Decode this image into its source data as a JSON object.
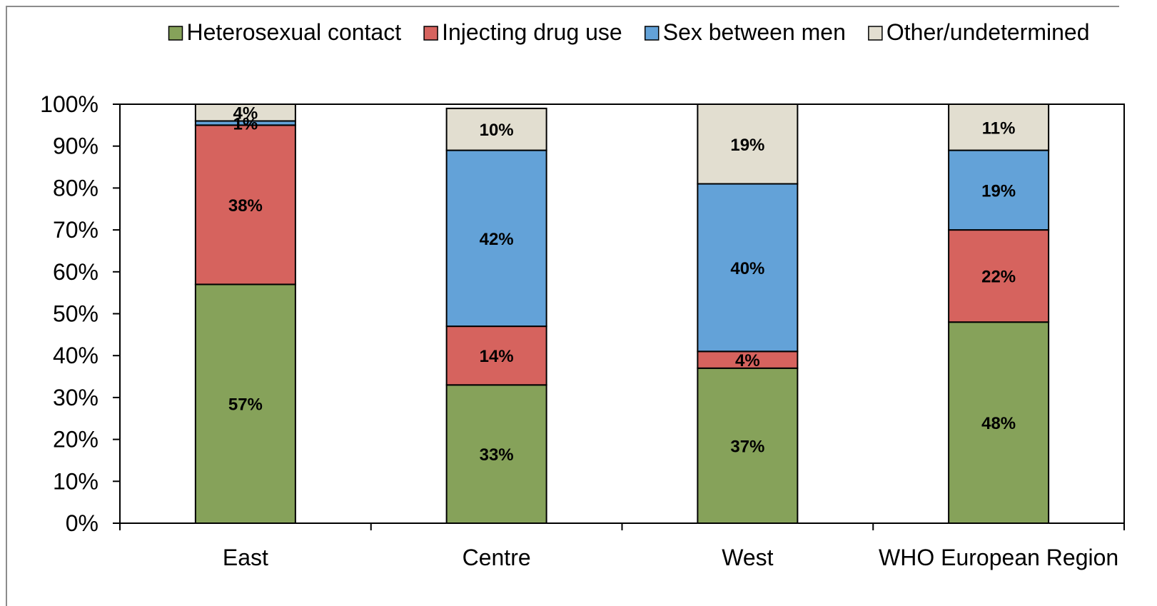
{
  "chart_data": {
    "type": "bar",
    "stacked": true,
    "categories": [
      "East",
      "Centre",
      "West",
      "WHO European Region"
    ],
    "series": [
      {
        "name": "Heterosexual contact",
        "color": "#86a25a",
        "values": [
          57,
          33,
          37,
          48
        ],
        "labels": [
          "57%",
          "33%",
          "37%",
          "48%"
        ]
      },
      {
        "name": "Injecting drug use",
        "color": "#d6635e",
        "values": [
          38,
          14,
          4,
          22
        ],
        "labels": [
          "38%",
          "14%",
          "4%",
          "22%"
        ]
      },
      {
        "name": "Sex between men",
        "color": "#63a2d8",
        "values": [
          1,
          42,
          40,
          19
        ],
        "labels": [
          "1%",
          "42%",
          "40%",
          "19%"
        ]
      },
      {
        "name": "Other/undetermined",
        "color": "#e2ded0",
        "values": [
          4,
          10,
          19,
          11
        ],
        "labels": [
          "4%",
          "10%",
          "19%",
          "11%"
        ]
      }
    ],
    "y_ticks": [
      "0%",
      "10%",
      "20%",
      "30%",
      "40%",
      "50%",
      "60%",
      "70%",
      "80%",
      "90%",
      "100%"
    ],
    "ylim": [
      0,
      100
    ],
    "legend_position": "top",
    "grid": false
  }
}
